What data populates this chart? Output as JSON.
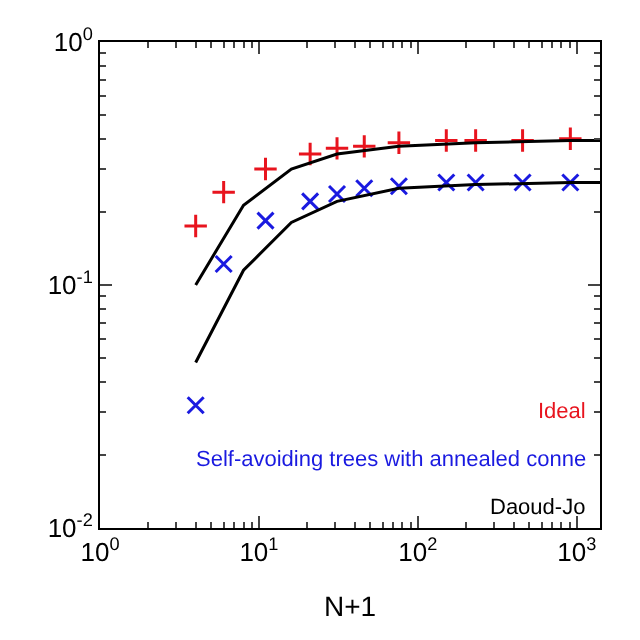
{
  "chart_data": {
    "type": "scatter",
    "xlabel": "N+1",
    "log": "xy",
    "grid": false,
    "legend": "bottom right",
    "xlim": [
      1,
      1400
    ],
    "ylim": [
      0.01,
      1
    ],
    "xticks": [
      {
        "value": 1,
        "label": "10$^{0}$"
      },
      {
        "value": 10,
        "label": "10$^{1}$"
      },
      {
        "value": 100,
        "label": "10$^{2}$"
      },
      {
        "value": 1000,
        "label": "10$^{3}$"
      }
    ],
    "yticks": [
      {
        "value": 0.01,
        "label": "10$^{-2}$"
      },
      {
        "value": 0.1,
        "label": "10$^{-1}$"
      },
      {
        "value": 1,
        "label": "10$^{0}$"
      }
    ],
    "series": [
      {
        "name": "Ideal",
        "type": "scatter",
        "marker": "cross",
        "color": "#e8141e",
        "x": [
          4,
          6,
          11,
          21,
          31,
          46,
          76,
          151,
          231,
          456,
          911
        ],
        "values": [
          0.175,
          0.241,
          0.3,
          0.346,
          0.365,
          0.372,
          0.385,
          0.393,
          0.393,
          0.393,
          0.4
        ]
      },
      {
        "name": "Self-avoiding trees with annealed conne",
        "type": "scatter",
        "marker": "x",
        "color": "#1a1ae0",
        "x": [
          4,
          6,
          11,
          21,
          31,
          46,
          76,
          151,
          231,
          456,
          911
        ],
        "values": [
          0.032,
          0.122,
          0.184,
          0.221,
          0.237,
          0.25,
          0.255,
          0.264,
          0.264,
          0.264,
          0.264
        ]
      },
      {
        "name": "Daoud-Jo",
        "type": "line",
        "marker": "none",
        "color": "#000000",
        "x": [
          4,
          8,
          16,
          31,
          76,
          231,
          911,
          1400
        ],
        "values": [
          0.1,
          0.213,
          0.3,
          0.346,
          0.372,
          0.385,
          0.393,
          0.393
        ]
      },
      {
        "type": "line",
        "marker": "none",
        "color": "#000000",
        "x": [
          4,
          8,
          16,
          31,
          76,
          231,
          911,
          1400
        ],
        "values": [
          0.048,
          0.115,
          0.181,
          0.221,
          0.25,
          0.259,
          0.264,
          0.264
        ]
      }
    ]
  }
}
